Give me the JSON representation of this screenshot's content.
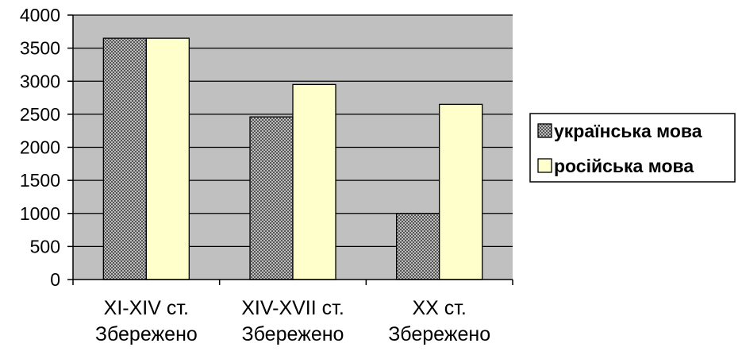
{
  "chart_data": {
    "type": "bar",
    "title": "",
    "xlabel": "",
    "ylabel": "",
    "categories": [
      [
        "XI-XIV ст.",
        "Збережено"
      ],
      [
        "XIV-XVII ст.",
        "Збережено"
      ],
      [
        "XX ст.",
        "Збережено"
      ]
    ],
    "series": [
      {
        "name": "українська мова",
        "values": [
          3650,
          2460,
          1000
        ],
        "color": "#9a9a9a",
        "pattern": "checker"
      },
      {
        "name": "російська мова",
        "values": [
          3650,
          2950,
          2650
        ],
        "color": "#ffffcc"
      }
    ],
    "ylim": [
      0,
      4000
    ],
    "yticks": [
      0,
      500,
      1000,
      1500,
      2000,
      2500,
      3000,
      3500,
      4000
    ],
    "grid": true,
    "plot_background": "#c0c0c0",
    "legend_position": "right"
  }
}
